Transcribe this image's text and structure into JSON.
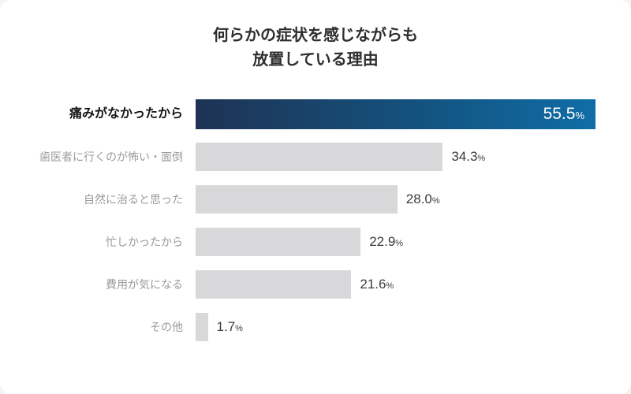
{
  "title": {
    "line1": "何らかの症状を感じながらも",
    "line2": "放置している理由"
  },
  "chart_data": {
    "type": "bar",
    "orientation": "horizontal",
    "title": "何らかの症状を感じながらも放置している理由",
    "unit": "%",
    "axis_max": 55.5,
    "categories": [
      "痛みがなかったから",
      "歯医者に行くのが怖い・面倒",
      "自然に治ると思った",
      "忙しかったから",
      "費用が気になる",
      "その他"
    ],
    "values": [
      55.5,
      34.3,
      28.0,
      22.9,
      21.6,
      1.7
    ],
    "value_labels": [
      "55.5",
      "34.3",
      "28.0",
      "22.9",
      "21.6",
      "1.7"
    ],
    "highlight_index": 0,
    "legend": "none",
    "grid": "off",
    "colors": {
      "highlight_gradient_start": "#1e3354",
      "highlight_gradient_end": "#0f6da6",
      "bar_default": "#d8d8da",
      "value_text": "#3c3c3c",
      "highlight_value_text": "#ffffff",
      "label_default": "#9b9b9b",
      "label_highlight": "#141414",
      "title_text": "#2e2e2e",
      "background": "#ffffff"
    }
  }
}
